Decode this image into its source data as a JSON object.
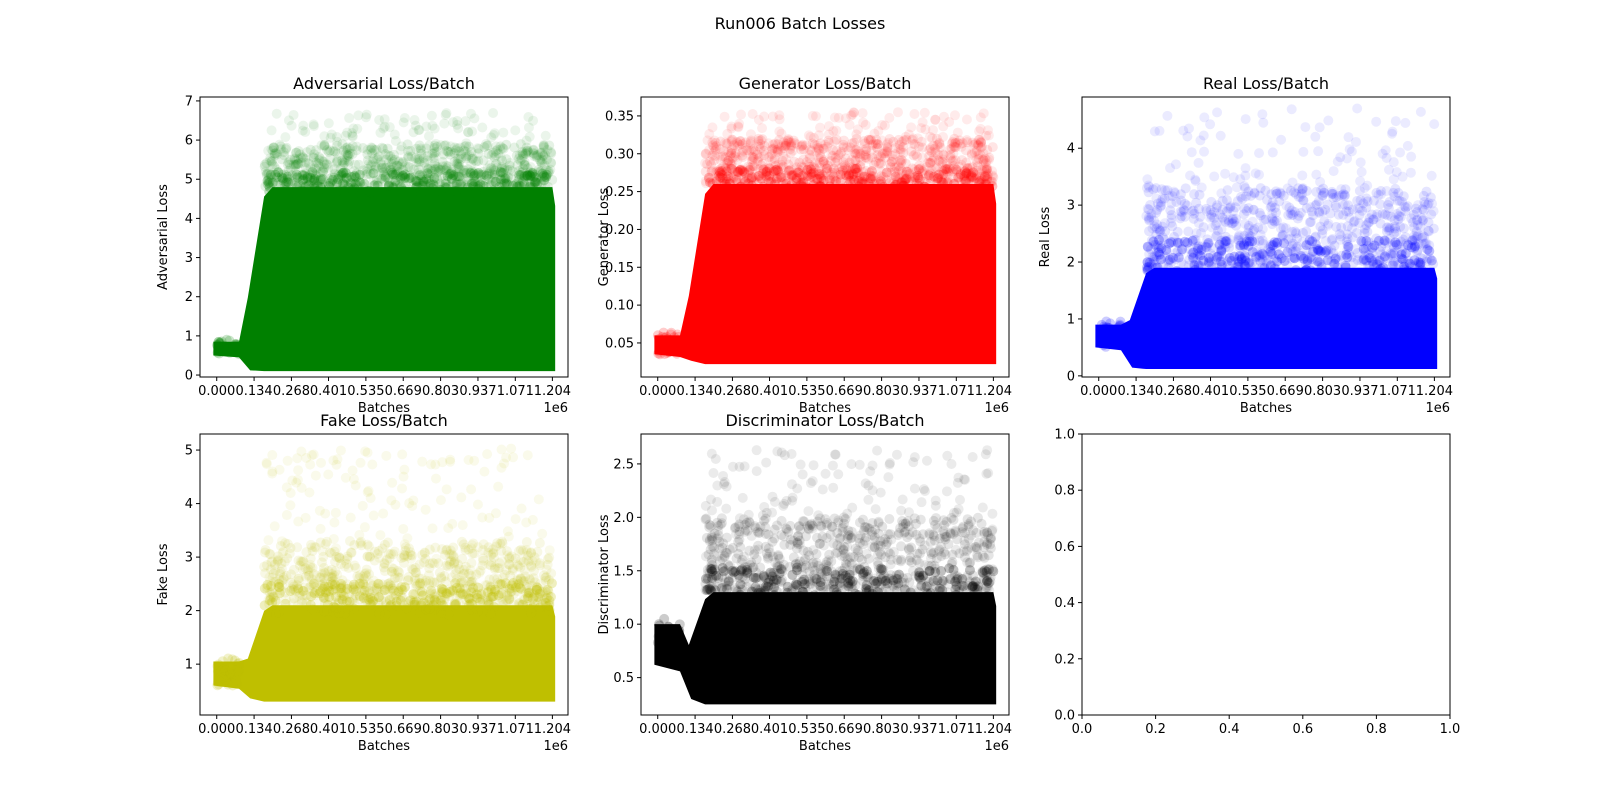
{
  "figure_title": "Run006 Batch Losses",
  "x_axis_label": "Batches",
  "x_offset_text": "1e6",
  "x_tick_labels": [
    "0.000",
    "0.134",
    "0.268",
    "0.401",
    "0.535",
    "0.669",
    "0.803",
    "0.937",
    "1.071",
    "1.204"
  ],
  "chart_data": [
    {
      "type": "scatter",
      "title": "Adversarial Loss/Batch",
      "xlabel": "Batches",
      "ylabel": "Adversarial Loss",
      "color": "#008000",
      "xlim": [
        -0.06,
        1.26
      ],
      "ylim": [
        -0.05,
        7.1
      ],
      "x_ticks": [
        0.0,
        0.134,
        0.268,
        0.401,
        0.535,
        0.669,
        0.803,
        0.937,
        1.071,
        1.204
      ],
      "y_ticks": [
        0,
        1,
        2,
        3,
        4,
        5,
        6,
        7
      ],
      "y_tick_labels": [
        "0",
        "1",
        "2",
        "3",
        "4",
        "5",
        "6",
        "7"
      ],
      "series": [
        {
          "x_range": [
            0.0,
            1.204
          ],
          "early_band": {
            "x_end": 0.08,
            "low": 0.5,
            "high": 0.85
          },
          "ramp": {
            "x_start": 0.08,
            "x_end": 0.17
          },
          "dense_band": {
            "low": 0.1,
            "high": 4.8
          },
          "sparse_band": {
            "low": 4.8,
            "high": 5.9
          },
          "max": 6.7
        }
      ]
    },
    {
      "type": "scatter",
      "title": "Generator Loss/Batch",
      "xlabel": "Batches",
      "ylabel": "Generator Loss",
      "color": "#ff0000",
      "xlim": [
        -0.06,
        1.26
      ],
      "ylim": [
        0.005,
        0.375
      ],
      "x_ticks": [
        0.0,
        0.134,
        0.268,
        0.401,
        0.535,
        0.669,
        0.803,
        0.937,
        1.071,
        1.204
      ],
      "y_ticks": [
        0.05,
        0.1,
        0.15,
        0.2,
        0.25,
        0.3,
        0.35
      ],
      "y_tick_labels": [
        "0.05",
        "0.10",
        "0.15",
        "0.20",
        "0.25",
        "0.30",
        "0.35"
      ],
      "series": [
        {
          "x_range": [
            0.0,
            1.204
          ],
          "early_band": {
            "x_end": 0.08,
            "low": 0.035,
            "high": 0.06
          },
          "ramp": {
            "x_start": 0.08,
            "x_end": 0.17
          },
          "dense_band": {
            "low": 0.022,
            "high": 0.26
          },
          "sparse_band": {
            "low": 0.26,
            "high": 0.32
          },
          "max": 0.355
        }
      ]
    },
    {
      "type": "scatter",
      "title": "Real Loss/Batch",
      "xlabel": "Batches",
      "ylabel": "Real Loss",
      "color": "#0000ff",
      "xlim": [
        -0.06,
        1.26
      ],
      "ylim": [
        -0.02,
        4.9
      ],
      "x_ticks": [
        0.0,
        0.134,
        0.268,
        0.401,
        0.535,
        0.669,
        0.803,
        0.937,
        1.071,
        1.204
      ],
      "y_ticks": [
        0,
        1,
        2,
        3,
        4
      ],
      "y_tick_labels": [
        "0",
        "1",
        "2",
        "3",
        "4"
      ],
      "series": [
        {
          "x_range": [
            0.0,
            1.204
          ],
          "early_band": {
            "x_end": 0.08,
            "low": 0.5,
            "high": 0.9
          },
          "ramp": {
            "x_start": 0.08,
            "x_end": 0.17
          },
          "dense_band": {
            "low": 0.12,
            "high": 1.9
          },
          "sparse_band": {
            "low": 1.9,
            "high": 3.3
          },
          "max": 4.7
        }
      ]
    },
    {
      "type": "scatter",
      "title": "Fake Loss/Batch",
      "xlabel": "Batches",
      "ylabel": "Fake Loss",
      "color": "#bfbf00",
      "xlim": [
        -0.06,
        1.26
      ],
      "ylim": [
        0.05,
        5.3
      ],
      "x_ticks": [
        0.0,
        0.134,
        0.268,
        0.401,
        0.535,
        0.669,
        0.803,
        0.937,
        1.071,
        1.204
      ],
      "y_ticks": [
        1,
        2,
        3,
        4,
        5
      ],
      "y_tick_labels": [
        "1",
        "2",
        "3",
        "4",
        "5"
      ],
      "series": [
        {
          "x_range": [
            0.0,
            1.204
          ],
          "early_band": {
            "x_end": 0.08,
            "low": 0.6,
            "high": 1.05
          },
          "ramp": {
            "x_start": 0.08,
            "x_end": 0.17
          },
          "dense_band": {
            "low": 0.3,
            "high": 2.1
          },
          "sparse_band": {
            "low": 2.1,
            "high": 3.3
          },
          "max": 5.05
        }
      ]
    },
    {
      "type": "scatter",
      "title": "Discriminator Loss/Batch",
      "xlabel": "Batches",
      "ylabel": "Discriminator Loss",
      "color": "#000000",
      "xlim": [
        -0.06,
        1.26
      ],
      "ylim": [
        0.15,
        2.78
      ],
      "x_ticks": [
        0.0,
        0.134,
        0.268,
        0.401,
        0.535,
        0.669,
        0.803,
        0.937,
        1.071,
        1.204
      ],
      "y_ticks": [
        0.5,
        1.0,
        1.5,
        2.0,
        2.5
      ],
      "y_tick_labels": [
        "0.5",
        "1.0",
        "1.5",
        "2.0",
        "2.5"
      ],
      "series": [
        {
          "x_range": [
            0.0,
            1.204
          ],
          "early_band": {
            "x_end": 0.08,
            "low": 0.62,
            "high": 1.0
          },
          "ramp": {
            "x_start": 0.08,
            "x_end": 0.17
          },
          "dense_band": {
            "low": 0.25,
            "high": 1.3
          },
          "sparse_band": {
            "low": 1.3,
            "high": 2.0
          },
          "max": 2.63
        }
      ]
    },
    {
      "type": "scatter",
      "title": "",
      "xlabel": "",
      "ylabel": "",
      "empty": true,
      "xlim": [
        0,
        1
      ],
      "ylim": [
        0,
        1
      ],
      "x_ticks": [
        0.0,
        0.2,
        0.4,
        0.6,
        0.8,
        1.0
      ],
      "y_ticks": [
        0.0,
        0.2,
        0.4,
        0.6,
        0.8,
        1.0
      ],
      "x_tick_labels": [
        "0.0",
        "0.2",
        "0.4",
        "0.6",
        "0.8",
        "1.0"
      ],
      "y_tick_labels": [
        "0.0",
        "0.2",
        "0.4",
        "0.6",
        "0.8",
        "1.0"
      ]
    }
  ]
}
